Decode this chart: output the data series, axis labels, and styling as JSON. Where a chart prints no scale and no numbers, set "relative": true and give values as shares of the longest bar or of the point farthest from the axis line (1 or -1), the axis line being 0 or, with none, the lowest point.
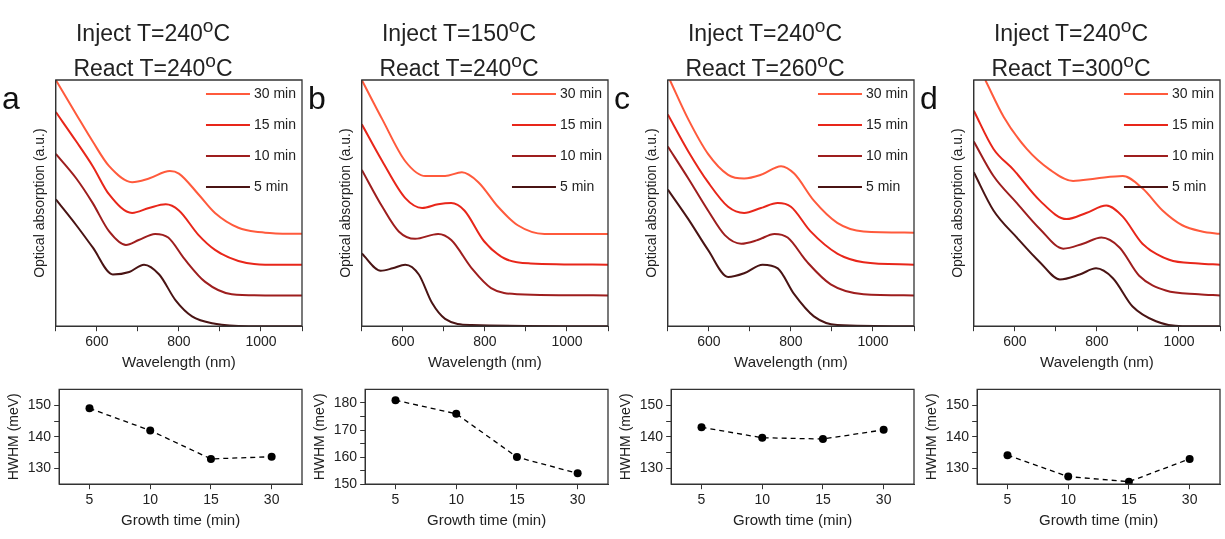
{
  "chart_data": [
    {
      "type": "line",
      "title": "Inject T=240$^{o}$C",
      "subtitle": "React T=240$^{o}$C",
      "xlabel": "Wavelength (nm)",
      "ylabel": "Optical absorption (a.u.)",
      "relative": true,
      "legend": "top right",
      "annotations": [
        "a"
      ],
      "xlim": [
        500,
        1100
      ],
      "xticks": [
        {
          "value": 500,
          "label": null
        },
        600,
        {
          "value": 700,
          "label": null
        },
        800,
        {
          "value": 900,
          "label": null
        },
        1000,
        {
          "value": 1100,
          "label": null
        }
      ],
      "series": [
        {
          "name": "30 min",
          "color": "#ff5a3c",
          "x": [
            500,
            550,
            590,
            630,
            686,
            727,
            778,
            800,
            848,
            888,
            945,
            1010,
            1100
          ],
          "values": [
            1.0,
            0.86,
            0.75,
            0.65,
            0.585,
            0.6,
            0.63,
            0.62,
            0.535,
            0.46,
            0.4,
            0.38,
            0.375
          ]
        },
        {
          "name": "15 min",
          "color": "#e8261a",
          "x": [
            500,
            550,
            590,
            630,
            686,
            727,
            768,
            800,
            848,
            888,
            945,
            1010,
            1100
          ],
          "values": [
            0.87,
            0.75,
            0.65,
            0.535,
            0.46,
            0.48,
            0.495,
            0.47,
            0.37,
            0.31,
            0.265,
            0.25,
            0.25
          ]
        },
        {
          "name": "10 min",
          "color": "#9e1e1e",
          "x": [
            500,
            550,
            590,
            630,
            671,
            702,
            742,
            774,
            815,
            864,
            929,
            1010,
            1100
          ],
          "values": [
            0.7,
            0.6,
            0.5,
            0.385,
            0.33,
            0.35,
            0.375,
            0.36,
            0.27,
            0.18,
            0.13,
            0.125,
            0.125
          ]
        },
        {
          "name": "5 min",
          "color": "#4a1414",
          "x": [
            500,
            550,
            590,
            639,
            679,
            715,
            752,
            792,
            832,
            888,
            969,
            1100
          ],
          "values": [
            0.515,
            0.41,
            0.32,
            0.21,
            0.22,
            0.25,
            0.21,
            0.105,
            0.04,
            0.01,
            0,
            0
          ]
        }
      ]
    },
    {
      "type": "line",
      "title": "Inject T=150$^{o}$C",
      "subtitle": "React T=240$^{o}$C",
      "xlabel": "Wavelength (nm)",
      "ylabel": "Optical absorption (a.u.)",
      "relative": true,
      "legend": "top right",
      "annotations": [
        "b"
      ],
      "xlim": [
        500,
        1100
      ],
      "xticks": [
        {
          "value": 500,
          "label": null
        },
        600,
        {
          "value": 700,
          "label": null
        },
        800,
        {
          "value": 900,
          "label": null
        },
        1000,
        {
          "value": 1100,
          "label": null
        }
      ],
      "series": [
        {
          "name": "30 min",
          "color": "#ff5a3c",
          "x": [
            500,
            550,
            606,
            655,
            703,
            744,
            784,
            832,
            880,
            945,
            1100
          ],
          "values": [
            1.0,
            0.84,
            0.67,
            0.61,
            0.61,
            0.625,
            0.585,
            0.485,
            0.41,
            0.375,
            0.375
          ]
        },
        {
          "name": "15 min",
          "color": "#e8261a",
          "x": [
            500,
            550,
            606,
            647,
            686,
            718,
            750,
            798,
            848,
            911,
            1100
          ],
          "values": [
            0.82,
            0.67,
            0.52,
            0.48,
            0.495,
            0.5,
            0.47,
            0.345,
            0.275,
            0.255,
            0.25
          ]
        },
        {
          "name": "10 min",
          "color": "#9e1e1e",
          "x": [
            500,
            550,
            590,
            630,
            686,
            718,
            768,
            815,
            880,
            1100
          ],
          "values": [
            0.635,
            0.485,
            0.385,
            0.355,
            0.375,
            0.35,
            0.235,
            0.155,
            0.13,
            0.125
          ]
        },
        {
          "name": "5 min",
          "color": "#4a1414",
          "x": [
            500,
            546,
            575,
            606,
            639,
            671,
            703,
            768,
            1100
          ],
          "values": [
            0.295,
            0.225,
            0.235,
            0.25,
            0.21,
            0.095,
            0.03,
            0.005,
            0
          ]
        }
      ]
    },
    {
      "type": "line",
      "title": "Inject T=240$^{o}$C",
      "subtitle": "React T=260$^{o}$C",
      "xlabel": "Wavelength (nm)",
      "ylabel": "Optical absorption (a.u.)",
      "relative": true,
      "legend": "top right",
      "annotations": [
        "c"
      ],
      "xlim": [
        500,
        1100
      ],
      "xticks": [
        {
          "value": 500,
          "label": null
        },
        600,
        {
          "value": 700,
          "label": null
        },
        800,
        {
          "value": 900,
          "label": null
        },
        1000,
        {
          "value": 1100,
          "label": null
        }
      ],
      "series": [
        {
          "name": "30 min",
          "color": "#ff5a3c",
          "x": [
            505,
            550,
            598,
            647,
            686,
            727,
            776,
            808,
            856,
            913,
            977,
            1100
          ],
          "values": [
            1.0,
            0.84,
            0.7,
            0.615,
            0.6,
            0.615,
            0.65,
            0.62,
            0.51,
            0.42,
            0.385,
            0.38
          ]
        },
        {
          "name": "15 min",
          "color": "#e8261a",
          "x": [
            500,
            550,
            598,
            647,
            686,
            727,
            768,
            800,
            848,
            913,
            977,
            1100
          ],
          "values": [
            0.86,
            0.71,
            0.585,
            0.485,
            0.46,
            0.48,
            0.5,
            0.485,
            0.385,
            0.295,
            0.26,
            0.25
          ]
        },
        {
          "name": "10 min",
          "color": "#9e1e1e",
          "x": [
            500,
            550,
            598,
            639,
            679,
            719,
            760,
            792,
            840,
            897,
            977,
            1100
          ],
          "values": [
            0.73,
            0.6,
            0.47,
            0.37,
            0.335,
            0.35,
            0.375,
            0.36,
            0.26,
            0.17,
            0.13,
            0.125
          ]
        },
        {
          "name": "5 min",
          "color": "#4a1414",
          "x": [
            500,
            550,
            598,
            647,
            686,
            731,
            768,
            808,
            856,
            913,
            1100
          ],
          "values": [
            0.555,
            0.435,
            0.31,
            0.2,
            0.215,
            0.25,
            0.235,
            0.13,
            0.04,
            0.005,
            0
          ]
        }
      ]
    },
    {
      "type": "line",
      "title": "Inject T=240$^{o}$C",
      "subtitle": "React T=300$^{o}$C",
      "xlabel": "Wavelength (nm)",
      "ylabel": "Optical absorption (a.u.)",
      "relative": true,
      "legend": "top right",
      "annotations": [
        "d"
      ],
      "xlim": [
        500,
        1100
      ],
      "xticks": [
        {
          "value": 500,
          "label": null
        },
        600,
        {
          "value": 700,
          "label": null
        },
        800,
        {
          "value": 900,
          "label": null
        },
        1000,
        {
          "value": 1100,
          "label": null
        }
      ],
      "series": [
        {
          "name": "30 min",
          "color": "#ff5a3c",
          "x": [
            528,
            573,
            629,
            686,
            742,
            798,
            863,
            911,
            960,
            1008,
            1056,
            1100
          ],
          "values": [
            1.0,
            0.85,
            0.72,
            0.635,
            0.59,
            0.6,
            0.61,
            0.56,
            0.47,
            0.41,
            0.385,
            0.375
          ]
        },
        {
          "name": "15 min",
          "color": "#e8261a",
          "x": [
            500,
            548,
            597,
            661,
            726,
            774,
            823,
            863,
            911,
            976,
            1048,
            1100
          ],
          "values": [
            0.875,
            0.72,
            0.635,
            0.51,
            0.435,
            0.46,
            0.49,
            0.445,
            0.335,
            0.27,
            0.255,
            0.25
          ]
        },
        {
          "name": "10 min",
          "color": "#9e1e1e",
          "x": [
            500,
            548,
            605,
            661,
            718,
            766,
            811,
            855,
            903,
            968,
            1048,
            1100
          ],
          "values": [
            0.75,
            0.61,
            0.5,
            0.395,
            0.315,
            0.335,
            0.36,
            0.32,
            0.205,
            0.145,
            0.13,
            0.125
          ]
        },
        {
          "name": "5 min",
          "color": "#4a1414",
          "x": [
            500,
            548,
            605,
            661,
            710,
            758,
            798,
            839,
            887,
            944,
            1008,
            1100
          ],
          "values": [
            0.625,
            0.47,
            0.36,
            0.26,
            0.19,
            0.21,
            0.235,
            0.195,
            0.08,
            0.02,
            0,
            0
          ]
        }
      ]
    },
    {
      "type": "line",
      "xlabel": "Growth time (min)",
      "ylabel": "HWHM (meV)",
      "categories": [
        "5",
        "10",
        "15",
        "30"
      ],
      "marker": "circle",
      "line_style": "dashed",
      "ylim": [
        125,
        155
      ],
      "yticks": [
        130,
        {
          "value": 135,
          "label": null
        },
        140,
        {
          "value": 145,
          "label": null
        },
        150
      ],
      "series": [
        {
          "color": "#000000",
          "values": [
            149,
            142,
            133,
            133.7
          ]
        }
      ]
    },
    {
      "type": "line",
      "xlabel": "Growth time (min)",
      "ylabel": "HWHM (meV)",
      "categories": [
        "5",
        "10",
        "15",
        "30"
      ],
      "marker": "circle",
      "line_style": "dashed",
      "ylim": [
        150,
        185
      ],
      "yticks": [
        150,
        {
          "value": 155,
          "label": null
        },
        160,
        {
          "value": 165,
          "label": null
        },
        170,
        {
          "value": 175,
          "label": null
        },
        180
      ],
      "series": [
        {
          "color": "#000000",
          "values": [
            181,
            176,
            160,
            154
          ]
        }
      ]
    },
    {
      "type": "line",
      "xlabel": "Growth time (min)",
      "ylabel": "HWHM (meV)",
      "categories": [
        "5",
        "10",
        "15",
        "30"
      ],
      "marker": "circle",
      "line_style": "dashed",
      "ylim": [
        125,
        155
      ],
      "yticks": [
        130,
        {
          "value": 135,
          "label": null
        },
        140,
        {
          "value": 145,
          "label": null
        },
        150
      ],
      "series": [
        {
          "color": "#000000",
          "values": [
            143,
            139.7,
            139.3,
            142.2
          ]
        }
      ]
    },
    {
      "type": "line",
      "xlabel": "Growth time (min)",
      "ylabel": "HWHM (meV)",
      "categories": [
        "5",
        "10",
        "15",
        "30"
      ],
      "marker": "circle",
      "line_style": "dashed",
      "ylim": [
        125,
        155
      ],
      "yticks": [
        130,
        {
          "value": 135,
          "label": null
        },
        140,
        {
          "value": 145,
          "label": null
        },
        150
      ],
      "series": [
        {
          "color": "#000000",
          "values": [
            134.2,
            127.4,
            125.8,
            133
          ]
        }
      ]
    }
  ]
}
